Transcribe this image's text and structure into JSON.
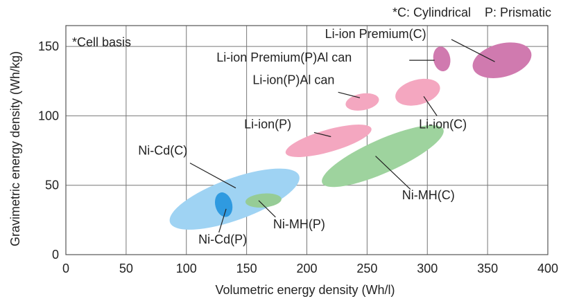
{
  "chart_data": {
    "type": "scatter",
    "title": "",
    "note_top": "*C: Cylindrical    P: Prismatic",
    "note_basis": "*Cell basis",
    "xlabel": "Volumetric energy density (Wh/l)",
    "ylabel": "Gravimetric energy density (Wh/kg)",
    "xlim": [
      0,
      400
    ],
    "ylim": [
      0,
      165
    ],
    "xticks": [
      0,
      50,
      100,
      150,
      200,
      250,
      300,
      350,
      400
    ],
    "yticks": [
      0,
      50,
      100,
      150
    ],
    "grid": true,
    "regions": [
      {
        "id": "nicd-c",
        "name": "Ni-Cd(C)",
        "color": "#9fd3f3",
        "cx": 140,
        "cy": 40,
        "rx": 57,
        "ry": 15,
        "angle": 20,
        "label_x": 60,
        "label_y": 72,
        "leader": [
          [
            103,
            66
          ],
          [
            141,
            48
          ]
        ]
      },
      {
        "id": "nicd-p",
        "name": "Ni-Cd(P)",
        "color": "#2f9ae0",
        "cx": 131,
        "cy": 36,
        "rx": 7,
        "ry": 9,
        "angle": 15,
        "label_x": 110,
        "label_y": 8,
        "leader": [
          [
            127,
            16
          ],
          [
            133,
            33
          ]
        ]
      },
      {
        "id": "nimh-p",
        "name": "Ni-MH(P)",
        "color": "#96cc96",
        "cx": 164,
        "cy": 39,
        "rx": 15,
        "ry": 5,
        "angle": 5,
        "label_x": 172,
        "label_y": 19,
        "leader": [
          [
            174,
            27
          ],
          [
            160,
            39
          ]
        ]
      },
      {
        "id": "nimh-c",
        "name": "Ni-MH(C)",
        "color": "#9ed39e",
        "cx": 263,
        "cy": 71,
        "rx": 55,
        "ry": 12,
        "angle": 24,
        "label_x": 279,
        "label_y": 40,
        "leader": [
          [
            286,
            47
          ],
          [
            257,
            71
          ]
        ]
      },
      {
        "id": "liion-p",
        "name": "Li-ion(P)",
        "color": "#f4a7c0",
        "cx": 218,
        "cy": 82,
        "rx": 37,
        "ry": 8,
        "angle": 16,
        "label_x": 148,
        "label_y": 91,
        "leader": [
          [
            206,
            88
          ],
          [
            220,
            85
          ]
        ]
      },
      {
        "id": "liion-c",
        "name": "Li-ion(C)",
        "color": "#f4a7c0",
        "cx": 292,
        "cy": 117,
        "rx": 19,
        "ry": 9,
        "angle": 15,
        "label_x": 293,
        "label_y": 91,
        "leader": [
          [
            308,
            100
          ],
          [
            297,
            114
          ]
        ]
      },
      {
        "id": "liion-p-al",
        "name": "Li-ion(P)Al can",
        "color": "#f4a7c0",
        "cx": 246,
        "cy": 110,
        "rx": 14,
        "ry": 6,
        "angle": 10,
        "label_x": 155,
        "label_y": 123,
        "leader": [
          [
            226,
            117
          ],
          [
            244,
            113
          ]
        ]
      },
      {
        "id": "liion-prem-p",
        "name": "Li-ion Premium(P)Al can",
        "color": "#d07aaf",
        "cx": 312,
        "cy": 141,
        "rx": 7,
        "ry": 9,
        "angle": 10,
        "label_x": 125,
        "label_y": 139,
        "leader": [
          [
            285,
            140
          ],
          [
            306,
            140
          ]
        ]
      },
      {
        "id": "liion-prem-c",
        "name": "Li-ion Premium(C)",
        "color": "#d07aaf",
        "cx": 362,
        "cy": 140,
        "rx": 25,
        "ry": 12,
        "angle": 15,
        "label_x": 215,
        "label_y": 156,
        "leader": [
          [
            320,
            155
          ],
          [
            356,
            139
          ]
        ]
      }
    ]
  }
}
